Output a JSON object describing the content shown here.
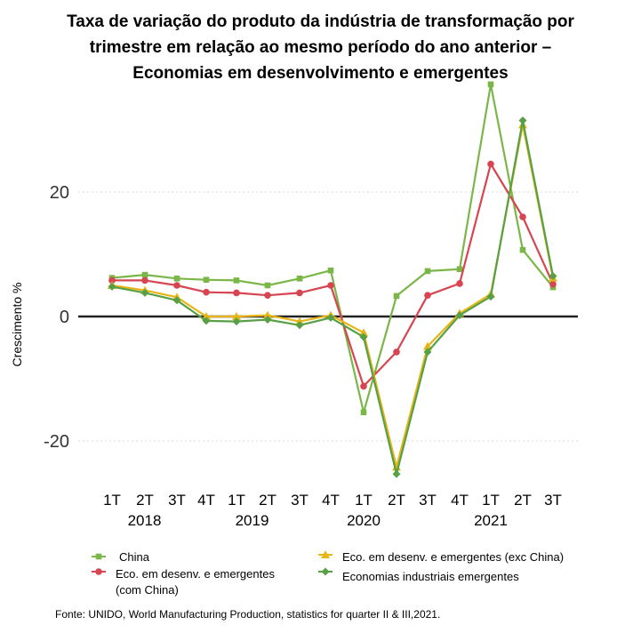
{
  "chart_data": {
    "type": "line",
    "title_lines": [
      "Taxa de variação do produto da indústria de transformação por",
      "trimestre em relação ao mesmo período do ano anterior –",
      "Economias em desenvolvimento e emergentes"
    ],
    "ylabel": "Crescimento %",
    "ylim": [
      -27,
      40
    ],
    "yticks": [
      20,
      0,
      -20
    ],
    "grid": "horizontal dotted",
    "categories": [
      "1T",
      "2T",
      "3T",
      "4T",
      "1T",
      "2T",
      "3T",
      "4T",
      "1T",
      "2T",
      "3T",
      "4T",
      "1T",
      "2T",
      "3T"
    ],
    "years": [
      {
        "label": "2018",
        "start": 0,
        "end": 2
      },
      {
        "label": "2019",
        "start": 4,
        "end": 5
      },
      {
        "label": "2020",
        "start": 8,
        "end": 8
      },
      {
        "label": "2021",
        "start": 12,
        "end": 12
      }
    ],
    "series": [
      {
        "name": "China",
        "color": "#7ab648",
        "marker": "square",
        "values": [
          6.2,
          6.7,
          6.1,
          5.9,
          5.8,
          5.0,
          6.1,
          7.4,
          -15.4,
          3.3,
          7.3,
          7.6,
          37.3,
          10.7,
          4.7
        ]
      },
      {
        "name": "Eco. em desenv. e emergentes (com China)",
        "color": "#d64550",
        "marker": "circle",
        "values": [
          5.8,
          5.8,
          5.0,
          3.9,
          3.8,
          3.4,
          3.8,
          5.0,
          -11.2,
          -5.7,
          3.4,
          5.3,
          24.5,
          16.0,
          5.2
        ]
      },
      {
        "name": "Eco. em desenv. e emergentes (exc China)",
        "color": "#e8b518",
        "marker": "triangle",
        "values": [
          5.0,
          4.2,
          3.1,
          0.0,
          0.0,
          0.2,
          -0.8,
          0.2,
          -2.6,
          -24.2,
          -4.8,
          0.5,
          3.6,
          30.8,
          6.2
        ]
      },
      {
        "name": "Economias industriais emergentes",
        "color": "#58a046",
        "marker": "diamond",
        "values": [
          4.8,
          3.8,
          2.6,
          -0.7,
          -0.8,
          -0.5,
          -1.4,
          -0.2,
          -3.3,
          -25.3,
          -5.7,
          0.2,
          3.2,
          31.5,
          6.5
        ]
      }
    ],
    "legend": [
      {
        "label": "China"
      },
      {
        "label": "Eco. em desenv. e emergentes (exc China)"
      },
      {
        "label": "Eco. em desenv. e emergentes",
        "label2": "(com China)"
      },
      {
        "label": "Economias industriais emergentes"
      }
    ]
  },
  "source": "Fonte: UNIDO, World Manufacturing Production, statistics for quarter II & III,2021."
}
